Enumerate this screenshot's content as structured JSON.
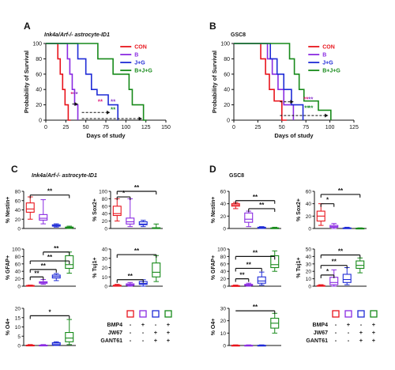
{
  "panel_letters": {
    "A": "A",
    "B": "B",
    "C": "C",
    "D": "D"
  },
  "panel_subtitles": {
    "A": "Ink4a/Arf-/- astrocyte-ID1",
    "B": "GSC8",
    "C": "Ink4a/Arf-/- astrocyte-ID1",
    "D": "GSC8"
  },
  "colors": {
    "CON": "#e8141c",
    "B": "#8a2be2",
    "JG": "#1f2bd6",
    "BJG": "#178a1a",
    "black": "#111111",
    "sig_pink": "#e0207f",
    "sig_purple": "#8e3fd0",
    "sig_green": "#1f8f2f"
  },
  "box_legend": {
    "rows": [
      {
        "label": "BMP4",
        "marks": [
          "-",
          "+",
          "-",
          "+"
        ]
      },
      {
        "label": "JW67",
        "marks": [
          "-",
          "-",
          "+",
          "+"
        ]
      },
      {
        "label": "GANT61",
        "marks": [
          "-",
          "-",
          "+",
          "+"
        ]
      }
    ]
  },
  "chart_data": [
    {
      "id": "A",
      "type": "line",
      "step": true,
      "xlabel": "Days of study",
      "ylabel": "Probability of Survival",
      "xlim": [
        0,
        150
      ],
      "ylim": [
        0,
        100
      ],
      "xticks": [
        0,
        25,
        50,
        75,
        100,
        125,
        150
      ],
      "yticks": [
        0,
        20,
        40,
        60,
        80,
        100
      ],
      "legend_position": "top-right",
      "series": [
        {
          "name": "CON",
          "color": "#e8141c",
          "x": [
            0,
            15,
            18,
            21,
            24,
            26,
            28,
            31
          ],
          "y": [
            100,
            80,
            60,
            40,
            20,
            20,
            0,
            0
          ]
        },
        {
          "name": "B",
          "color": "#8a2be2",
          "x": [
            0,
            27,
            30,
            33,
            36,
            38,
            40
          ],
          "y": [
            100,
            80,
            60,
            40,
            20,
            20,
            0
          ]
        },
        {
          "name": "J+G",
          "color": "#1f2bd6",
          "x": [
            0,
            40,
            50,
            57,
            64,
            70,
            78,
            84,
            90
          ],
          "y": [
            100,
            80,
            60,
            40,
            33,
            33,
            20,
            20,
            0
          ]
        },
        {
          "name": "B+J+G",
          "color": "#178a1a",
          "x": [
            0,
            65,
            84,
            104,
            108,
            118,
            122,
            126
          ],
          "y": [
            100,
            80,
            60,
            40,
            20,
            20,
            0,
            0
          ]
        }
      ],
      "annotations": [
        "**",
        "**",
        "**",
        "**",
        "**"
      ]
    },
    {
      "id": "B",
      "type": "line",
      "step": true,
      "xlabel": "Days of study",
      "ylabel": "Probability of Survival",
      "xlim": [
        0,
        125
      ],
      "ylim": [
        0,
        100
      ],
      "xticks": [
        0,
        25,
        50,
        75,
        100,
        125
      ],
      "yticks": [
        0,
        20,
        40,
        60,
        80,
        100
      ],
      "legend_position": "top-right",
      "series": [
        {
          "name": "CON",
          "color": "#e8141c",
          "x": [
            0,
            28,
            33,
            37,
            42,
            46,
            50,
            55
          ],
          "y": [
            100,
            80,
            60,
            40,
            25,
            25,
            0,
            0
          ]
        },
        {
          "name": "B",
          "color": "#8a2be2",
          "x": [
            0,
            35,
            40,
            46,
            52,
            57,
            62
          ],
          "y": [
            100,
            80,
            60,
            40,
            20,
            20,
            0
          ]
        },
        {
          "name": "J+G",
          "color": "#1f2bd6",
          "x": [
            0,
            38,
            45,
            52,
            60,
            66,
            72
          ],
          "y": [
            100,
            80,
            60,
            40,
            20,
            20,
            0
          ]
        },
        {
          "name": "B+J+G",
          "color": "#178a1a",
          "x": [
            0,
            58,
            63,
            68,
            73,
            80,
            88,
            96,
            101
          ],
          "y": [
            100,
            80,
            60,
            40,
            25,
            25,
            13,
            13,
            0
          ]
        }
      ],
      "annotations": [
        "**",
        "**",
        "**",
        "**"
      ]
    },
    {
      "id": "C-nestin",
      "type": "box",
      "ylabel": "% Nestin+",
      "ylim": [
        0,
        80
      ],
      "yticks": [
        0,
        20,
        40,
        60,
        80
      ],
      "groups": [
        "CON",
        "B",
        "J+G",
        "B+J+G"
      ],
      "boxes": [
        [
          20,
          35,
          42,
          55,
          68
        ],
        [
          10,
          18,
          22,
          30,
          62
        ],
        [
          3,
          5,
          6,
          8,
          10
        ],
        [
          0,
          1,
          2,
          3,
          5
        ]
      ],
      "annotations": [
        "**"
      ]
    },
    {
      "id": "C-sox2",
      "type": "box",
      "ylabel": "% Sox2+",
      "ylim": [
        0,
        100
      ],
      "yticks": [
        0,
        20,
        40,
        60,
        80,
        100
      ],
      "groups": [
        "CON",
        "B",
        "J+G",
        "B+J+G"
      ],
      "boxes": [
        [
          20,
          35,
          40,
          60,
          80
        ],
        [
          5,
          12,
          18,
          28,
          80
        ],
        [
          5,
          10,
          12,
          18,
          22
        ],
        [
          0,
          0,
          0,
          2,
          12
        ]
      ],
      "annotations": [
        "*",
        "**"
      ]
    },
    {
      "id": "C-gfap",
      "type": "box",
      "ylabel": "% GFAP+",
      "ylim": [
        0,
        100
      ],
      "yticks": [
        0,
        20,
        40,
        60,
        80,
        100
      ],
      "groups": [
        "CON",
        "B",
        "J+G",
        "B+J+G"
      ],
      "boxes": [
        [
          0,
          0,
          1,
          2,
          3
        ],
        [
          5,
          8,
          10,
          12,
          18
        ],
        [
          15,
          22,
          26,
          30,
          34
        ],
        [
          35,
          48,
          58,
          82,
          92
        ]
      ],
      "annotations": [
        "**",
        "**",
        "**",
        "**"
      ]
    },
    {
      "id": "C-tuj1",
      "type": "box",
      "ylabel": "% Tuj1+",
      "ylim": [
        0,
        40
      ],
      "yticks": [
        0,
        10,
        20,
        30,
        40
      ],
      "groups": [
        "CON",
        "B",
        "J+G",
        "B+J+G"
      ],
      "boxes": [
        [
          0,
          0,
          1,
          1,
          2
        ],
        [
          0,
          1,
          1.5,
          2.5,
          4
        ],
        [
          0,
          2,
          3,
          5,
          7
        ],
        [
          5,
          10,
          15,
          25,
          33
        ]
      ],
      "annotations": [
        "**",
        "**"
      ]
    },
    {
      "id": "C-o4",
      "type": "box",
      "ylabel": "% O4+",
      "ylim": [
        0,
        20
      ],
      "yticks": [
        0,
        5,
        10,
        15,
        20
      ],
      "groups": [
        "CON",
        "B",
        "J+G",
        "B+J+G"
      ],
      "boxes": [
        [
          0,
          0,
          0,
          0.2,
          0.5
        ],
        [
          0,
          0,
          0,
          0.2,
          0.5
        ],
        [
          0,
          0.2,
          0.8,
          1.5,
          2
        ],
        [
          0.5,
          2,
          4,
          7,
          14
        ]
      ],
      "annotations": [
        "*"
      ]
    },
    {
      "id": "D-nestin",
      "type": "box",
      "ylabel": "% Nestin+",
      "ylim": [
        0,
        60
      ],
      "yticks": [
        0,
        20,
        40,
        60
      ],
      "groups": [
        "CON",
        "B",
        "J+G",
        "B+J+G"
      ],
      "boxes": [
        [
          32,
          36,
          38,
          40,
          42
        ],
        [
          3,
          10,
          15,
          25,
          28
        ],
        [
          0,
          0.5,
          1,
          2,
          3
        ],
        [
          0,
          0,
          0.5,
          1,
          2
        ]
      ],
      "annotations": [
        "**",
        "**"
      ]
    },
    {
      "id": "D-sox2",
      "type": "box",
      "ylabel": "% Sox2+",
      "ylim": [
        0,
        60
      ],
      "yticks": [
        0,
        20,
        40,
        60
      ],
      "groups": [
        "CON",
        "B",
        "J+G",
        "B+J+G"
      ],
      "boxes": [
        [
          5,
          12,
          20,
          28,
          40
        ],
        [
          0,
          2,
          3,
          5,
          8
        ],
        [
          0,
          0,
          0.5,
          1,
          2
        ],
        [
          0,
          0,
          0.2,
          0.5,
          1
        ]
      ],
      "annotations": [
        "*",
        "**"
      ]
    },
    {
      "id": "D-gfap",
      "type": "box",
      "ylabel": "% GFAP+",
      "ylim": [
        0,
        100
      ],
      "yticks": [
        0,
        20,
        40,
        60,
        80,
        100
      ],
      "groups": [
        "CON",
        "B",
        "J+G",
        "B+J+G"
      ],
      "boxes": [
        [
          0,
          0,
          1,
          1.5,
          3
        ],
        [
          0,
          2,
          3,
          5,
          8
        ],
        [
          3,
          8,
          14,
          25,
          38
        ],
        [
          40,
          50,
          58,
          82,
          95
        ]
      ],
      "annotations": [
        "**",
        "**",
        "**"
      ]
    },
    {
      "id": "D-tuj1",
      "type": "box",
      "ylabel": "% Tuj1+",
      "ylim": [
        0,
        50
      ],
      "yticks": [
        0,
        10,
        20,
        30,
        40,
        50
      ],
      "groups": [
        "CON",
        "B",
        "J+G",
        "B+J+G"
      ],
      "boxes": [
        [
          0,
          0,
          0.5,
          1,
          2
        ],
        [
          0,
          2,
          5,
          12,
          22
        ],
        [
          2,
          5,
          9,
          16,
          25
        ],
        [
          18,
          24,
          28,
          34,
          38
        ]
      ],
      "annotations": [
        "*",
        "**",
        "**"
      ]
    },
    {
      "id": "D-o4",
      "type": "box",
      "ylabel": "% O4+",
      "ylim": [
        0,
        30
      ],
      "yticks": [
        0,
        10,
        20,
        30
      ],
      "groups": [
        "CON",
        "B",
        "J+G",
        "B+J+G"
      ],
      "boxes": [
        [
          0,
          0,
          0,
          0.2,
          0.5
        ],
        [
          0,
          0,
          0,
          0.2,
          0.5
        ],
        [
          0,
          0,
          0,
          0.2,
          0.5
        ],
        [
          10,
          14,
          18,
          22,
          26
        ]
      ],
      "annotations": [
        "**"
      ]
    }
  ]
}
